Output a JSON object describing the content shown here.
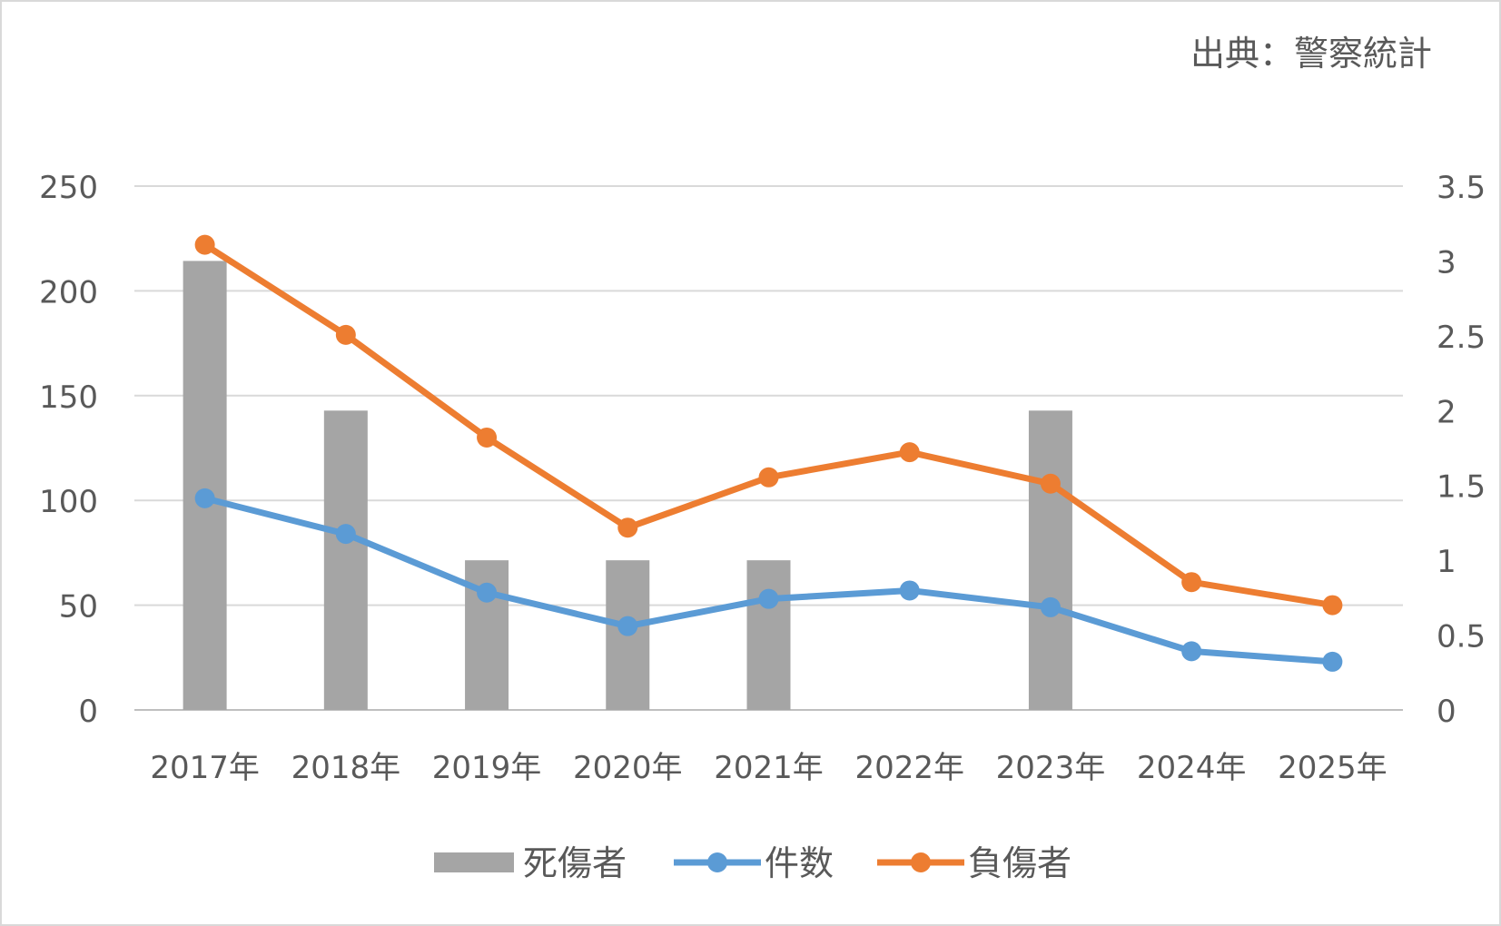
{
  "chart_data": {
    "type": "bar",
    "source_note": "出典：警察統計",
    "categories": [
      "2017年",
      "2018年",
      "2019年",
      "2020年",
      "2021年",
      "2022年",
      "2023年",
      "2024年",
      "2025年"
    ],
    "y_left": {
      "min": 0,
      "max": 250,
      "ticks": [
        "0",
        "50",
        "100",
        "150",
        "200",
        "250"
      ]
    },
    "y_right": {
      "min": 0,
      "max": 3.5,
      "ticks": [
        "0",
        "0.5",
        "1",
        "1.5",
        "2",
        "2.5",
        "3",
        "3.5"
      ]
    },
    "grid": true,
    "legend_position": "bottom",
    "series": [
      {
        "name": "死傷者",
        "type": "bar",
        "axis": "right",
        "color": "#a5a5a5",
        "values": [
          3,
          2,
          1,
          1,
          1,
          0,
          2,
          0,
          0
        ]
      },
      {
        "name": "件数",
        "type": "line",
        "axis": "left",
        "color": "#5b9bd5",
        "values": [
          101,
          84,
          56,
          40,
          53,
          57,
          49,
          28,
          23
        ]
      },
      {
        "name": "負傷者",
        "type": "line",
        "axis": "left",
        "color": "#ed7d31",
        "values": [
          222,
          179,
          130,
          87,
          111,
          123,
          108,
          61,
          50
        ]
      }
    ]
  }
}
